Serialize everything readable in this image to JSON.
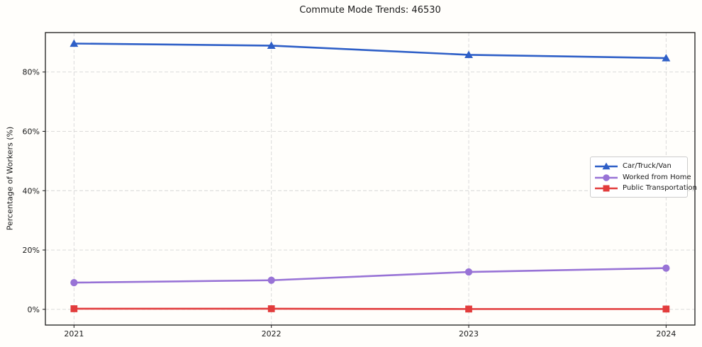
{
  "title": "Commute Mode Trends: 46530",
  "colors": {
    "car_line": "#2e5fc7",
    "wfh_line": "#9873d6",
    "transit_line": "#e23c3c",
    "grid": "#d6d6d6",
    "spine": "#1a1a1a",
    "text": "#1a1a1a",
    "legend_border": "#cccccc",
    "background": "#fffefb"
  },
  "chart_data": {
    "type": "line",
    "title": "Commute Mode Trends: 46530",
    "xlabel": "",
    "ylabel": "Percentage of Workers (%)",
    "x": [
      2021,
      2022,
      2023,
      2024
    ],
    "xtick_labels": [
      "2021",
      "2022",
      "2023",
      "2024"
    ],
    "ytick_values": [
      0,
      20,
      40,
      60,
      80
    ],
    "ytick_labels": [
      "0%",
      "20%",
      "40%",
      "60%",
      "80%"
    ],
    "xlim": [
      2020.855,
      2024.146
    ],
    "ylim": [
      -5.3,
      93.3
    ],
    "grid": true,
    "grid_style": "dashed",
    "legend_position": "center right",
    "series": [
      {
        "name": "Car/Truck/Van",
        "marker": "triangle",
        "color": "#2e5fc7",
        "values": [
          89.6,
          88.9,
          85.8,
          84.7
        ]
      },
      {
        "name": "Worked from Home",
        "marker": "circle",
        "color": "#9873d6",
        "values": [
          9.0,
          9.8,
          12.6,
          13.9
        ]
      },
      {
        "name": "Public Transportation",
        "marker": "square",
        "color": "#e23c3c",
        "values": [
          0.2,
          0.2,
          0.1,
          0.1
        ]
      }
    ]
  }
}
